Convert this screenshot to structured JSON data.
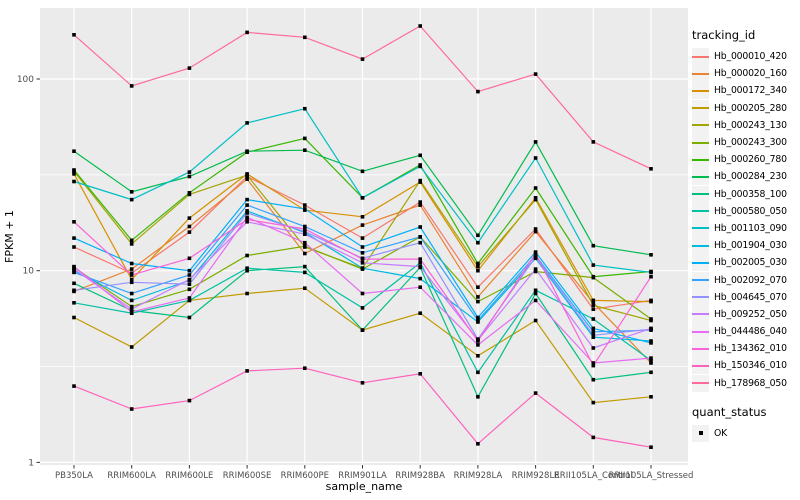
{
  "figure": {
    "background": "#FFFFFF",
    "panel_background": "#EBEBEB",
    "grid_color": "#FFFFFF",
    "tick_color": "#333333",
    "tick_label_color": "#4D4D4D",
    "axis_title_color": "#000000",
    "point_color": "#000000",
    "legend_key_fill": "#F2F2F2"
  },
  "chart_data": {
    "type": "line",
    "title": "",
    "xlabel": "sample_name",
    "ylabel": "FPKM + 1",
    "y_scale": "log10",
    "ylim": [
      0.93,
      235
    ],
    "y_major_ticks": [
      1,
      10,
      100
    ],
    "y_major_labels": [
      "1",
      "10",
      "100"
    ],
    "y_minor_ticks": [
      3.1623,
      31.623
    ],
    "grid": true,
    "point_shape": "filled-square",
    "legend_position": "right",
    "categories": [
      "PB350LA",
      "RRIM600LA",
      "RRIM600LE",
      "RRIM600SE",
      "RRIM600PE",
      "RRIM901LA",
      "RRIM928BA",
      "RRIM928LA",
      "RRIM928LE",
      "RRII105LA_Control",
      "RRII105LA_Stressed"
    ],
    "legend": {
      "series_title": "tracking_id",
      "status_title": "quant_status",
      "status_label": "OK"
    },
    "series": [
      {
        "name": "Hb_000010_420",
        "color": "#F8766D",
        "values": [
          13.3,
          9.7,
          15.9,
          31,
          22,
          14.8,
          22.8,
          8.2,
          16.5,
          6.3,
          7.0
        ]
      },
      {
        "name": "Hb_000020_160",
        "color": "#EA8331",
        "values": [
          7.8,
          10.2,
          17.0,
          30,
          12.3,
          17.3,
          22.0,
          7.3,
          16.0,
          6.8,
          3.3
        ]
      },
      {
        "name": "Hb_000172_340",
        "color": "#D89000",
        "values": [
          32,
          9.0,
          18.8,
          32,
          20.7,
          19.1,
          29,
          10.0,
          24,
          7.0,
          6.9
        ]
      },
      {
        "name": "Hb_000205_280",
        "color": "#C09B00",
        "values": [
          5.7,
          4.0,
          7.0,
          7.6,
          8.1,
          4.9,
          6.0,
          3.6,
          5.5,
          2.05,
          2.2
        ]
      },
      {
        "name": "Hb_000243_130",
        "color": "#A3A500",
        "values": [
          33,
          13.8,
          25,
          31.5,
          13.3,
          10.3,
          29.5,
          10.5,
          23.5,
          6.6,
          5.5
        ]
      },
      {
        "name": "Hb_000243_300",
        "color": "#7CAE00",
        "values": [
          10.4,
          6.5,
          8.0,
          12.0,
          13.4,
          10.2,
          15.0,
          6.9,
          9.9,
          9.2,
          5.6
        ]
      },
      {
        "name": "Hb_000260_780",
        "color": "#39B600",
        "values": [
          33.5,
          14.4,
          25.5,
          41.5,
          49,
          24,
          35.6,
          10.9,
          27,
          9.3,
          9.9
        ]
      },
      {
        "name": "Hb_000284_230",
        "color": "#00BB4E",
        "values": [
          42,
          25.8,
          31,
          42,
          42.5,
          33,
          40,
          15.3,
          47,
          13.5,
          12.1
        ]
      },
      {
        "name": "Hb_000358_100",
        "color": "#00BF7D",
        "values": [
          8.6,
          6.2,
          5.7,
          10.0,
          10.5,
          4.9,
          10.4,
          2.2,
          7.6,
          2.7,
          2.95
        ]
      },
      {
        "name": "Hb_000580_050",
        "color": "#00C1A3",
        "values": [
          6.8,
          6.0,
          7.0,
          10.3,
          9.8,
          6.4,
          11.0,
          2.95,
          7.9,
          5.6,
          3.4
        ]
      },
      {
        "name": "Hb_001103_090",
        "color": "#00BFC4",
        "values": [
          29.2,
          23.5,
          32.7,
          59,
          70,
          24,
          35,
          14.0,
          38.7,
          10.7,
          9.8
        ]
      },
      {
        "name": "Hb_001904_030",
        "color": "#00BAE0",
        "values": [
          10.0,
          7.0,
          8.9,
          20.5,
          15.8,
          10.3,
          9.1,
          5.4,
          11.6,
          4.5,
          4.3
        ]
      },
      {
        "name": "Hb_002005_030",
        "color": "#00B0F6",
        "values": [
          14.8,
          10.9,
          10.0,
          23.5,
          21,
          13.3,
          16.9,
          5.7,
          12.5,
          5.0,
          4.2
        ]
      },
      {
        "name": "Hb_002092_070",
        "color": "#35A2FF",
        "values": [
          9.8,
          7.6,
          9.5,
          22,
          17,
          12.4,
          15.0,
          5.5,
          12.0,
          4.8,
          4.9
        ]
      },
      {
        "name": "Hb_004645_070",
        "color": "#9590FF",
        "values": [
          7.9,
          8.7,
          8.5,
          20,
          16,
          11.6,
          14.0,
          4.4,
          11.8,
          4.6,
          4.95
        ]
      },
      {
        "name": "Hb_009252_050",
        "color": "#C77CFF",
        "values": [
          10.2,
          6.3,
          9.0,
          18,
          15.5,
          11.0,
          10.5,
          4.35,
          10.2,
          3.95,
          5.0
        ]
      },
      {
        "name": "Hb_044486_040",
        "color": "#E76BF3",
        "values": [
          10.5,
          6.1,
          7.2,
          19,
          14,
          7.6,
          8.2,
          4.1,
          7.0,
          3.3,
          3.5
        ]
      },
      {
        "name": "Hb_134362_010",
        "color": "#FA62DB",
        "values": [
          18,
          9.5,
          11.6,
          18.5,
          16.5,
          11.5,
          11.5,
          4.3,
          12.3,
          3.2,
          9.3
        ]
      },
      {
        "name": "Hb_150346_010",
        "color": "#FF62BC",
        "values": [
          2.5,
          1.9,
          2.1,
          3.0,
          3.1,
          2.6,
          2.9,
          1.25,
          2.3,
          1.35,
          1.2
        ]
      },
      {
        "name": "Hb_178968_050",
        "color": "#FF6A98",
        "values": [
          170,
          92,
          114,
          175,
          165,
          127,
          189,
          86,
          106,
          47,
          34
        ]
      }
    ]
  }
}
